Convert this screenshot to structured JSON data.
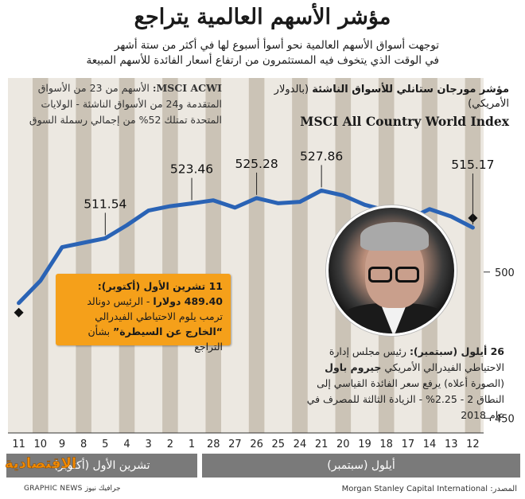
{
  "title": "مؤشر الأسهم العالمية يتراجع",
  "subtitle_line1": "توجهت أسواق الأسهم العالمية نحو أسوأ أسبوع لها في أكثر من ستة أشهر",
  "subtitle_line2": "في الوقت الذي يتخوف فيه المستثمرون من ارتفاع أسعار الفائدة للأسهم المبيعة",
  "header": {
    "bold": "مؤشر مورجان ستانلي للأسواق الناشئة",
    "unit": "(بالدولار الأمريكي)",
    "english": "MSCI All Country World Index"
  },
  "acwi_note": {
    "label": "MSCI ACWI:",
    "text": "الأسهم من 23 من الأسواق المتقدمة و24 من الأسواق الناشئة - الولايات المتحدة تمتلك 52% من إجمالي رسملة السوق"
  },
  "callout": {
    "date": "11 تشرين الأول (أكتوبر):",
    "value": "489.40 دولارا",
    "text": " - الرئيس دونالد ترمب يلوم الاحتياطي الفيدرالي",
    "quote": "“الخارج عن السيطرة”",
    "tail": " بشأن التراجع"
  },
  "sep_note": {
    "date": "26 أيلول (سبتمبر):",
    "text1": " رئيس مجلس إدارة الاحتياطي الفيدرالي الأمريكي ",
    "name": "جيروم باول",
    "text2": " (الصورة أعلاه) يرفع سعر الفائدة القياسي إلى النطاق 2 - 2.25% - الزيادة الثالثة للمصرف في عام 2018"
  },
  "months": {
    "october": "تشرين الأول (أكتوبر)",
    "september": "أيلول (سبتمبر)"
  },
  "source": "المصدر: Morgan Stanley Capital International",
  "credit": "GRAPHIC NEWS جرافيك نيوز",
  "logo": "الاقتصادية",
  "colors": {
    "line": "#2a63b5",
    "bars": "#cbc3b6",
    "background": "#ece8e1",
    "callout": "#f5a01a",
    "month_band": "#7a7a7a"
  },
  "chart_data": {
    "type": "line",
    "xlabel": "",
    "ylabel": "",
    "x": [
      "12",
      "13",
      "14",
      "17",
      "18",
      "19",
      "20",
      "21",
      "24",
      "25",
      "26",
      "27",
      "28",
      "1",
      "2",
      "3",
      "4",
      "5",
      "8",
      "9",
      "10",
      "11"
    ],
    "values": [
      515.17,
      519.0,
      521.5,
      518.0,
      521.0,
      523.0,
      526.2,
      527.86,
      524.0,
      523.5,
      525.28,
      522.0,
      524.5,
      523.46,
      522.5,
      521.0,
      516.0,
      511.54,
      510.0,
      508.5,
      497.0,
      489.4
    ],
    "labels": [
      {
        "x": "12",
        "value": 515.17,
        "text": "515.17"
      },
      {
        "x": "21",
        "value": 527.86,
        "text": "527.86"
      },
      {
        "x": "26",
        "value": 525.28,
        "text": "525.28"
      },
      {
        "x": "1",
        "value": 523.46,
        "text": "523.46"
      },
      {
        "x": "5",
        "value": 511.54,
        "text": "511.54"
      }
    ],
    "yticks": [
      "450",
      "500"
    ],
    "ylim": [
      445,
      550
    ],
    "grid": false
  }
}
